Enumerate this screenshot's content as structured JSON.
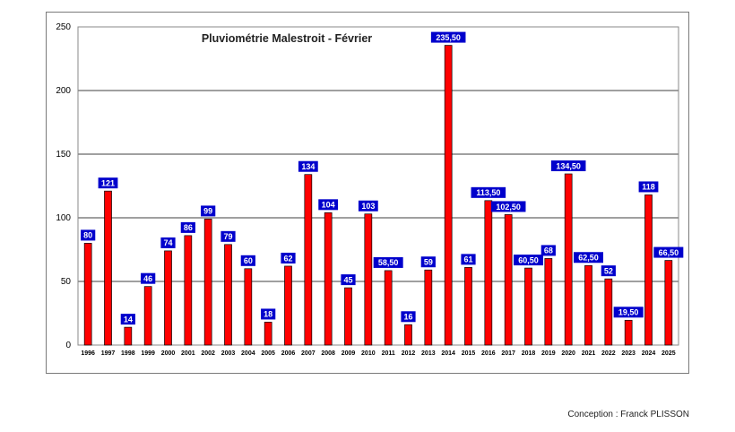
{
  "chart_data": {
    "type": "bar",
    "title": "Pluviométrie Malestroit - Février",
    "xlabel": "",
    "ylabel": "",
    "ylim": [
      0,
      250
    ],
    "yticks": [
      0,
      50,
      100,
      150,
      200,
      250
    ],
    "grid": true,
    "legend": "none",
    "categories": [
      "1996",
      "1997",
      "1998",
      "1999",
      "2000",
      "2001",
      "2002",
      "2003",
      "2004",
      "2005",
      "2006",
      "2007",
      "2008",
      "2009",
      "2010",
      "2011",
      "2012",
      "2013",
      "2014",
      "2015",
      "2016",
      "2017",
      "2018",
      "2019",
      "2020",
      "2021",
      "2022",
      "2023",
      "2024",
      "2025"
    ],
    "values": [
      80,
      121,
      14,
      46,
      74,
      86,
      99,
      79,
      60,
      18,
      62,
      134,
      104,
      45,
      103,
      58.5,
      16,
      59,
      235.5,
      61,
      113.5,
      102.5,
      60.5,
      68,
      134.5,
      62.5,
      52,
      19.5,
      118,
      66.5
    ],
    "value_labels": [
      "80",
      "121",
      "14",
      "46",
      "74",
      "86",
      "99",
      "79",
      "60",
      "18",
      "62",
      "134",
      "104",
      "45",
      "103",
      "58,50",
      "16",
      "59",
      "235,50",
      "61",
      "113,50",
      "102,50",
      "60,50",
      "68",
      "134,50",
      "62,50",
      "52",
      "19,50",
      "118",
      "66,50"
    ],
    "colors": {
      "bar": "#ff0000",
      "bar_edge": "#000000",
      "label_bg": "#0000cc",
      "label_text": "#ffffff"
    }
  },
  "footer": {
    "credit": "Conception : Franck PLISSON"
  }
}
